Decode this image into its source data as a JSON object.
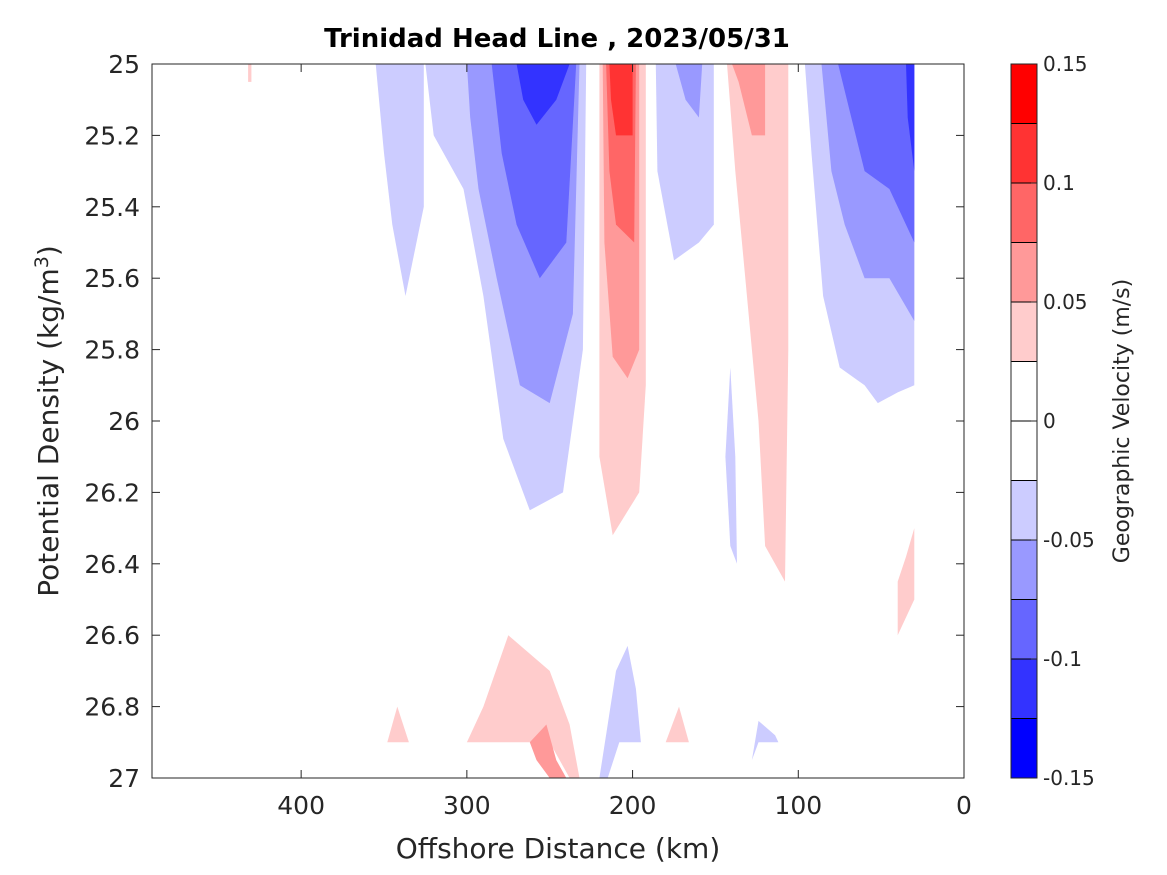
{
  "chart_data": {
    "type": "filled-contour",
    "title": "Trinidad Head Line , 2023/05/31",
    "xlabel": "Offshore Distance (km)",
    "ylabel_main": "Potential Density (kg/m",
    "ylabel_sup": "3",
    "ylabel_tail": ")",
    "xlim": [
      490,
      0
    ],
    "x_reversed": true,
    "ylim": [
      25,
      27
    ],
    "y_reversed": true,
    "xticks": [
      400,
      300,
      200,
      100,
      0
    ],
    "xtick_labels": [
      "400",
      "300",
      "200",
      "100",
      "0"
    ],
    "yticks": [
      25,
      25.2,
      25.4,
      25.6,
      25.8,
      26,
      26.2,
      26.4,
      26.6,
      26.8,
      27
    ],
    "ytick_labels": [
      "25",
      "25.2",
      "25.4",
      "25.6",
      "25.8",
      "26",
      "26.2",
      "26.4",
      "26.6",
      "26.8",
      "27"
    ],
    "colorbar": {
      "label": "Geographic Velocity (m/s)",
      "range": [
        -0.15,
        0.15
      ],
      "ticks": [
        0.15,
        0.1,
        0.05,
        0,
        -0.05,
        -0.1,
        -0.15
      ],
      "tick_labels": [
        "0.15",
        "0.1",
        "0.05",
        "0",
        "-0.05",
        "-0.1",
        "-0.15"
      ],
      "bands": [
        {
          "lo": 0.125,
          "hi": 0.15,
          "color": "#ff0000"
        },
        {
          "lo": 0.1,
          "hi": 0.125,
          "color": "#ff3333"
        },
        {
          "lo": 0.075,
          "hi": 0.1,
          "color": "#ff6666"
        },
        {
          "lo": 0.05,
          "hi": 0.075,
          "color": "#ff9999"
        },
        {
          "lo": 0.025,
          "hi": 0.05,
          "color": "#ffcccc"
        },
        {
          "lo": 0.0,
          "hi": 0.025,
          "color": "#ffffff"
        },
        {
          "lo": -0.025,
          "hi": 0.0,
          "color": "#ffffff"
        },
        {
          "lo": -0.05,
          "hi": -0.025,
          "color": "#ccccff"
        },
        {
          "lo": -0.075,
          "hi": -0.05,
          "color": "#9999ff"
        },
        {
          "lo": -0.1,
          "hi": -0.075,
          "color": "#6666ff"
        },
        {
          "lo": -0.125,
          "hi": -0.1,
          "color": "#3333ff"
        },
        {
          "lo": -0.15,
          "hi": -0.125,
          "color": "#0000ff"
        }
      ]
    },
    "regions": [
      {
        "level": -0.025,
        "color": "#ccccff",
        "points": [
          [
            355,
            25
          ],
          [
            326,
            25
          ],
          [
            326,
            25.4
          ],
          [
            337,
            25.65
          ],
          [
            345,
            25.45
          ],
          [
            350,
            25.25
          ]
        ]
      },
      {
        "level": -0.05,
        "color": "#ccccff",
        "points": [
          [
            325,
            25
          ],
          [
            228,
            25
          ],
          [
            230,
            25.8
          ],
          [
            242,
            26.2
          ],
          [
            262,
            26.25
          ],
          [
            278,
            26.05
          ],
          [
            290,
            25.65
          ],
          [
            302,
            25.35
          ],
          [
            320,
            25.2
          ]
        ]
      },
      {
        "level": -0.075,
        "color": "#9999ff",
        "points": [
          [
            300,
            25
          ],
          [
            232,
            25
          ],
          [
            236,
            25.7
          ],
          [
            250,
            25.95
          ],
          [
            268,
            25.9
          ],
          [
            282,
            25.6
          ],
          [
            293,
            25.35
          ],
          [
            298,
            25.15
          ]
        ]
      },
      {
        "level": -0.1,
        "color": "#6666ff",
        "points": [
          [
            285,
            25
          ],
          [
            234,
            25
          ],
          [
            240,
            25.5
          ],
          [
            256,
            25.6
          ],
          [
            270,
            25.45
          ],
          [
            279,
            25.25
          ]
        ]
      },
      {
        "level": -0.125,
        "color": "#3333ff",
        "points": [
          [
            270,
            25
          ],
          [
            238,
            25
          ],
          [
            246,
            25.1
          ],
          [
            258,
            25.17
          ],
          [
            266,
            25.1
          ]
        ]
      },
      {
        "level": 0.025,
        "color": "#ffcccc",
        "points": [
          [
            220,
            25
          ],
          [
            192,
            25
          ],
          [
            192,
            25.9
          ],
          [
            196,
            26.2
          ],
          [
            212,
            26.32
          ],
          [
            220,
            26.1
          ]
        ]
      },
      {
        "level": 0.05,
        "color": "#ff9999",
        "points": [
          [
            218,
            25
          ],
          [
            196,
            25
          ],
          [
            196,
            25.8
          ],
          [
            203,
            25.88
          ],
          [
            212,
            25.82
          ],
          [
            217,
            25.5
          ]
        ]
      },
      {
        "level": 0.075,
        "color": "#ff6666",
        "points": [
          [
            216,
            25
          ],
          [
            198,
            25
          ],
          [
            199,
            25.5
          ],
          [
            210,
            25.45
          ],
          [
            214,
            25.3
          ]
        ]
      },
      {
        "level": 0.1,
        "color": "#ff3333",
        "points": [
          [
            214,
            25
          ],
          [
            200,
            25
          ],
          [
            200,
            25.2
          ],
          [
            210,
            25.2
          ],
          [
            213,
            25.1
          ]
        ]
      },
      {
        "level": -0.025,
        "color": "#ccccff",
        "points": [
          [
            186,
            25
          ],
          [
            151,
            25
          ],
          [
            151,
            25.45
          ],
          [
            160,
            25.5
          ],
          [
            175,
            25.55
          ],
          [
            185,
            25.3
          ]
        ]
      },
      {
        "level": -0.05,
        "color": "#ccccff",
        "points": [
          [
            178,
            25
          ],
          [
            158,
            25
          ],
          [
            160,
            25.25
          ],
          [
            170,
            25.2
          ],
          [
            176,
            25.1
          ]
        ]
      },
      {
        "level": -0.075,
        "color": "#9999ff",
        "points": [
          [
            174,
            25
          ],
          [
            158,
            25
          ],
          [
            160,
            25.15
          ],
          [
            168,
            25.1
          ]
        ]
      },
      {
        "level": 0.025,
        "color": "#ffcccc",
        "points": [
          [
            143,
            25
          ],
          [
            106,
            25
          ],
          [
            106,
            25.8
          ],
          [
            108,
            26.45
          ],
          [
            120,
            26.35
          ],
          [
            124,
            26
          ],
          [
            132,
            25.6
          ],
          [
            138,
            25.3
          ]
        ]
      },
      {
        "level": 0.05,
        "color": "#ff9999",
        "points": [
          [
            140,
            25
          ],
          [
            120,
            25
          ],
          [
            120,
            25.2
          ],
          [
            128,
            25.2
          ],
          [
            136,
            25.05
          ]
        ]
      },
      {
        "level": -0.025,
        "color": "#ccccff",
        "points": [
          [
            96,
            25
          ],
          [
            30,
            25
          ],
          [
            30,
            25.9
          ],
          [
            40,
            25.92
          ],
          [
            52,
            25.95
          ],
          [
            60,
            25.9
          ],
          [
            75,
            25.85
          ],
          [
            85,
            25.65
          ],
          [
            92,
            25.25
          ]
        ]
      },
      {
        "level": -0.05,
        "color": "#9999ff",
        "points": [
          [
            86,
            25
          ],
          [
            30,
            25
          ],
          [
            30,
            25.72
          ],
          [
            45,
            25.6
          ],
          [
            60,
            25.6
          ],
          [
            72,
            25.45
          ],
          [
            80,
            25.3
          ]
        ]
      },
      {
        "level": -0.075,
        "color": "#6666ff",
        "points": [
          [
            76,
            25
          ],
          [
            30,
            25
          ],
          [
            30,
            25.5
          ],
          [
            45,
            25.35
          ],
          [
            60,
            25.3
          ],
          [
            68,
            25.15
          ]
        ]
      },
      {
        "level": -0.1,
        "color": "#3333ff",
        "points": [
          [
            35,
            25
          ],
          [
            30,
            25
          ],
          [
            30,
            25.3
          ],
          [
            34,
            25.15
          ]
        ]
      },
      {
        "level": -0.025,
        "color": "#ccccff",
        "points": [
          [
            141,
            25.85
          ],
          [
            138,
            26.1
          ],
          [
            137,
            26.4
          ],
          [
            141,
            26.35
          ],
          [
            144,
            26.1
          ]
        ]
      },
      {
        "level": 0.025,
        "color": "#ffcccc",
        "points": [
          [
            30,
            26.3
          ],
          [
            30,
            26.5
          ],
          [
            40,
            26.6
          ],
          [
            40,
            26.45
          ],
          [
            35,
            26.38
          ]
        ]
      },
      {
        "level": 0.025,
        "color": "#ffcccc",
        "points": [
          [
            432,
            25
          ],
          [
            430,
            25
          ],
          [
            430,
            25.05
          ],
          [
            432,
            25.05
          ]
        ]
      },
      {
        "level": 0.025,
        "color": "#ffcccc",
        "points": [
          [
            348,
            26.9
          ],
          [
            342,
            26.8
          ],
          [
            335,
            26.9
          ]
        ]
      },
      {
        "level": 0.025,
        "color": "#ffcccc",
        "points": [
          [
            300,
            26.9
          ],
          [
            290,
            26.8
          ],
          [
            275,
            26.6
          ],
          [
            250,
            26.7
          ],
          [
            238,
            26.85
          ],
          [
            232,
            27
          ],
          [
            238,
            27
          ],
          [
            250,
            26.9
          ]
        ]
      },
      {
        "level": 0.05,
        "color": "#ff9999",
        "points": [
          [
            262,
            26.9
          ],
          [
            252,
            26.85
          ],
          [
            246,
            26.95
          ],
          [
            240,
            27
          ],
          [
            250,
            27
          ],
          [
            258,
            26.95
          ]
        ]
      },
      {
        "level": -0.025,
        "color": "#ccccff",
        "points": [
          [
            220,
            27
          ],
          [
            215,
            26.85
          ],
          [
            210,
            26.7
          ],
          [
            203,
            26.63
          ],
          [
            198,
            26.75
          ],
          [
            195,
            26.9
          ],
          [
            208,
            26.9
          ],
          [
            215,
            27
          ]
        ]
      },
      {
        "level": 0.025,
        "color": "#ffcccc",
        "points": [
          [
            180,
            26.9
          ],
          [
            172,
            26.8
          ],
          [
            166,
            26.9
          ]
        ]
      },
      {
        "level": -0.025,
        "color": "#ccccff",
        "points": [
          [
            128,
            26.95
          ],
          [
            124,
            26.84
          ],
          [
            114,
            26.88
          ],
          [
            112,
            26.9
          ],
          [
            124,
            26.9
          ]
        ]
      }
    ]
  }
}
